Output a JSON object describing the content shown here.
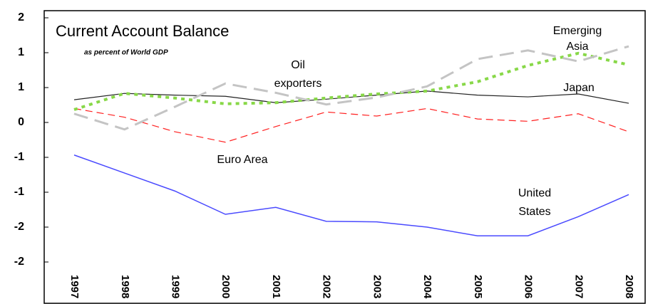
{
  "chart_data": {
    "type": "line",
    "title": "Current Account Balance",
    "subtitle": "as percent of World GDP",
    "categories": [
      "1997",
      "1998",
      "1999",
      "2000",
      "2001",
      "2002",
      "2003",
      "2004",
      "2005",
      "2006",
      "2007",
      "2008"
    ],
    "series": [
      {
        "color": "#4a4aff",
        "dash": "none",
        "width": 1.5,
        "values": [
          -0.56,
          -0.87,
          -1.18,
          -1.58,
          -1.46,
          -1.7,
          -1.71,
          -1.8,
          -1.95,
          -1.95,
          -1.62,
          -1.24
        ]
      },
      {
        "color": "#222222",
        "dash": "none",
        "width": 1.2,
        "values": [
          0.39,
          0.5,
          0.47,
          0.45,
          0.34,
          0.4,
          0.47,
          0.54,
          0.47,
          0.44,
          0.49,
          0.33
        ]
      },
      {
        "color": "#ff2020",
        "dash": "10 6",
        "width": 1.2,
        "values": [
          0.24,
          0.09,
          -0.16,
          -0.34,
          -0.07,
          0.18,
          0.11,
          0.24,
          0.06,
          0.02,
          0.15,
          -0.16
        ]
      },
      {
        "color": "#88d848",
        "dash": "5 6",
        "width": 4,
        "values": [
          0.22,
          0.5,
          0.42,
          0.32,
          0.34,
          0.42,
          0.49,
          0.54,
          0.7,
          0.98,
          1.19,
          0.99
        ]
      },
      {
        "color": "#c4c4c4",
        "dash": "20 10",
        "width": 3,
        "values": [
          0.15,
          -0.12,
          0.27,
          0.67,
          0.51,
          0.31,
          0.43,
          0.62,
          1.09,
          1.24,
          1.05,
          1.31
        ]
      }
    ],
    "annotations": [
      "Oil",
      "exporters",
      "Emerging",
      "Asia",
      "Japan",
      "Euro Area",
      "United",
      "States"
    ],
    "ylim": [
      -2.4,
      1.8
    ],
    "yticks": [
      {
        "value": 1.8,
        "label": "2"
      },
      {
        "value": 1.2,
        "label": "1"
      },
      {
        "value": 0.6,
        "label": "1"
      },
      0,
      {
        "value": -0.6,
        "label": "-1"
      },
      {
        "value": -1.2,
        "label": "-1"
      },
      {
        "value": -1.8,
        "label": "-2"
      },
      {
        "value": -2.4,
        "label": "-2"
      }
    ]
  }
}
